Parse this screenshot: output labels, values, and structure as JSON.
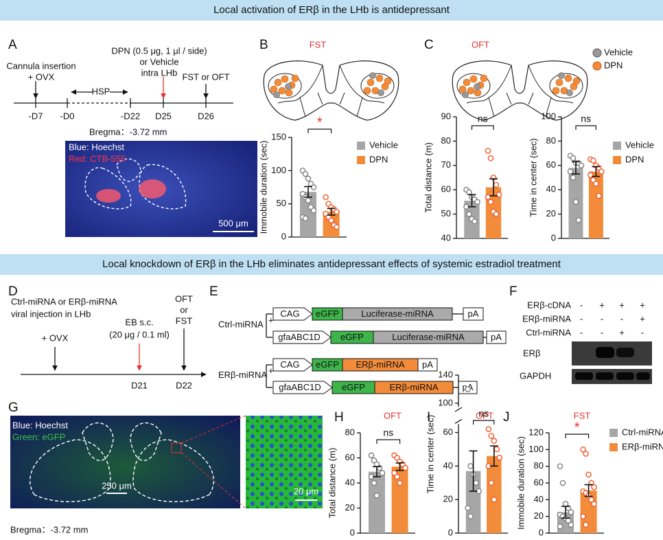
{
  "header": {
    "banner1": "Local activation of ERβ in the LHb is antidepressant",
    "banner2": "Local knockdown of ERβ in the LHb eliminates antidepressant effects of systemic estradiol treatment"
  },
  "panels": {
    "A": {
      "letter": "A",
      "event": [
        "Cannula insertion",
        "+ OVX"
      ],
      "treatment": [
        "DPN (0.5 μg, 1 μl / side)",
        "or Vehicle",
        "intra LHb"
      ],
      "test": "FST or OFT",
      "interval": "HSP",
      "days": [
        "-D7",
        "-D0",
        "-D22",
        "D25",
        "D26"
      ],
      "bregma": "Bregma：-3.72 mm",
      "image_labels": [
        "Blue: Hoechst",
        "Red: CTB-555"
      ],
      "scale": "500 μm"
    },
    "B": {
      "letter": "B",
      "title": "FST"
    },
    "C": {
      "letter": "C",
      "title": "OFT",
      "legend": [
        "Vehicle",
        "DPN"
      ]
    },
    "D": {
      "letter": "D",
      "injection": [
        "Ctrl-miRNA or ERβ-miRNA",
        "viral injection in LHb"
      ],
      "ovx": "+ OVX",
      "treatment": [
        "EB s.c.",
        "(20 μg / 0.1 ml)"
      ],
      "test": [
        "OFT",
        "or",
        "FST"
      ],
      "days": [
        "D21",
        "D22"
      ]
    },
    "E": {
      "letter": "E",
      "plus": "+",
      "constructs": [
        {
          "name": "Ctrl-miRNA",
          "rows": [
            [
              "CAG",
              "eGFP",
              "Luciferase-miRNA",
              "pA"
            ],
            [
              "gfaABC1D",
              "eGFP",
              "Luciferase-miRNA",
              "pA"
            ]
          ]
        },
        {
          "name": "ERβ-miRNA",
          "rows": [
            [
              "CAG",
              "eGFP",
              "ERβ-miRNA",
              "pA"
            ],
            [
              "gfaABC1D",
              "eGFP",
              "ERβ-miRNA",
              "pA"
            ]
          ]
        }
      ]
    },
    "F": {
      "letter": "F",
      "rows": [
        {
          "label": "ERβ-cDNA",
          "marks": [
            "-",
            "+",
            "+",
            "+"
          ]
        },
        {
          "label": "ERβ-miRNA",
          "marks": [
            "-",
            "-",
            "-",
            "+"
          ]
        },
        {
          "label": "Ctrl-miRNA",
          "marks": [
            "-",
            "-",
            "+",
            "-"
          ]
        }
      ],
      "bands": [
        "ERβ",
        "GAPDH"
      ]
    },
    "G": {
      "letter": "G",
      "image_labels": [
        "Blue: Hoechst",
        "Green: eGFP"
      ],
      "scale": "250 μm",
      "inset_scale": "20 μm",
      "bregma": "Bregma：-3.72 mm"
    },
    "H": {
      "letter": "H",
      "title": "OFT"
    },
    "I": {
      "letter": "I",
      "title": "OFT"
    },
    "J": {
      "letter": "J",
      "title": "FST"
    }
  },
  "chart_data": [
    {
      "type": "bar",
      "ylabel": "Immobile duration (sec)",
      "categories": [
        "Vehicle",
        "DPN"
      ],
      "legend": true,
      "values": [
        68,
        38
      ],
      "errors": [
        8,
        5
      ],
      "points": [
        [
          100,
          95,
          88,
          80,
          75,
          65,
          60,
          55,
          45,
          40,
          30,
          28
        ],
        [
          60,
          50,
          45,
          42,
          38,
          35,
          30,
          25,
          18,
          15
        ]
      ],
      "colors": [
        "#a6a6a6",
        "#f28c3a"
      ],
      "point_colors": [
        "#7f7f7f",
        "#f05a28"
      ],
      "ylim": [
        0,
        150
      ],
      "yticks": [
        0,
        50,
        100,
        150
      ],
      "significance": "*",
      "significance_color": "#e8312d"
    },
    {
      "type": "bar",
      "ylabel": "Total distance (m)",
      "values": [
        55.5,
        61
      ],
      "errors": [
        2.5,
        3.5
      ],
      "points": [
        [
          60,
          59,
          57,
          56,
          55,
          53,
          50,
          48,
          47
        ],
        [
          76,
          73,
          65,
          62,
          58,
          57,
          55,
          51,
          50
        ]
      ],
      "colors": [
        "#a6a6a6",
        "#f28c3a"
      ],
      "point_colors": [
        "#7f7f7f",
        "#f05a28"
      ],
      "ylim": [
        40,
        90
      ],
      "yticks": [
        40,
        50,
        60,
        70,
        80,
        90
      ],
      "significance": "ns",
      "significance_color": "#111111"
    },
    {
      "type": "bar",
      "ylabel": "Time in center (sec)",
      "categories": [
        "Vehicle",
        "DPN"
      ],
      "legend": true,
      "values": [
        58,
        55
      ],
      "errors": [
        5,
        4
      ],
      "points": [
        [
          68,
          66,
          62,
          62,
          60,
          55,
          50,
          30,
          15
        ],
        [
          65,
          64,
          60,
          58,
          55,
          52,
          48,
          45,
          35
        ]
      ],
      "colors": [
        "#a6a6a6",
        "#f28c3a"
      ],
      "point_colors": [
        "#7f7f7f",
        "#f05a28"
      ],
      "ylim": [
        0,
        100
      ],
      "yticks": [
        0,
        20,
        40,
        60,
        80,
        100
      ],
      "significance": "ns",
      "significance_color": "#111111"
    },
    {
      "type": "bar",
      "ylabel": "Total distance (m)",
      "values": [
        49,
        53
      ],
      "errors": [
        4,
        3
      ],
      "points": [
        [
          62,
          58,
          55,
          52,
          48,
          45,
          40,
          30
        ],
        [
          62,
          60,
          57,
          55,
          52,
          48,
          45,
          40
        ]
      ],
      "colors": [
        "#a6a6a6",
        "#f28c3a"
      ],
      "point_colors": [
        "#7f7f7f",
        "#f05a28"
      ],
      "ylim": [
        0,
        80
      ],
      "yticks": [
        0,
        20,
        40,
        60,
        80
      ],
      "significance": "ns",
      "significance_color": "#111111"
    },
    {
      "type": "bar",
      "ylabel": "Time in center (sec)",
      "values": [
        37,
        46
      ],
      "errors": [
        12,
        6
      ],
      "points": [
        [
          120,
          40,
          35,
          30,
          25,
          15,
          10
        ],
        [
          62,
          58,
          55,
          50,
          45,
          40,
          30,
          20
        ]
      ],
      "colors": [
        "#a6a6a6",
        "#f28c3a"
      ],
      "point_colors": [
        "#7f7f7f",
        "#f05a28"
      ],
      "ylim": [
        0,
        140
      ],
      "ybreak": [
        65,
        95
      ],
      "yticks": [
        0,
        20,
        40,
        60,
        100,
        140
      ],
      "significance": "ns",
      "significance_color": "#111111"
    },
    {
      "type": "bar",
      "ylabel": "Immobile duration (sec)",
      "categories": [
        "Ctrl-miRNA",
        "ERβ-miRNA"
      ],
      "legend": true,
      "values": [
        25,
        51
      ],
      "errors": [
        7,
        7
      ],
      "points": [
        [
          80,
          60,
          35,
          30,
          25,
          22,
          20,
          18,
          15,
          10,
          8
        ],
        [
          100,
          95,
          70,
          60,
          55,
          50,
          48,
          45,
          40,
          35,
          20,
          10
        ]
      ],
      "colors": [
        "#a6a6a6",
        "#f28c3a"
      ],
      "point_colors": [
        "#7f7f7f",
        "#f05a28"
      ],
      "ylim": [
        0,
        120
      ],
      "yticks": [
        0,
        20,
        40,
        60,
        80,
        100,
        120
      ],
      "significance": "*",
      "significance_color": "#e8312d"
    }
  ]
}
